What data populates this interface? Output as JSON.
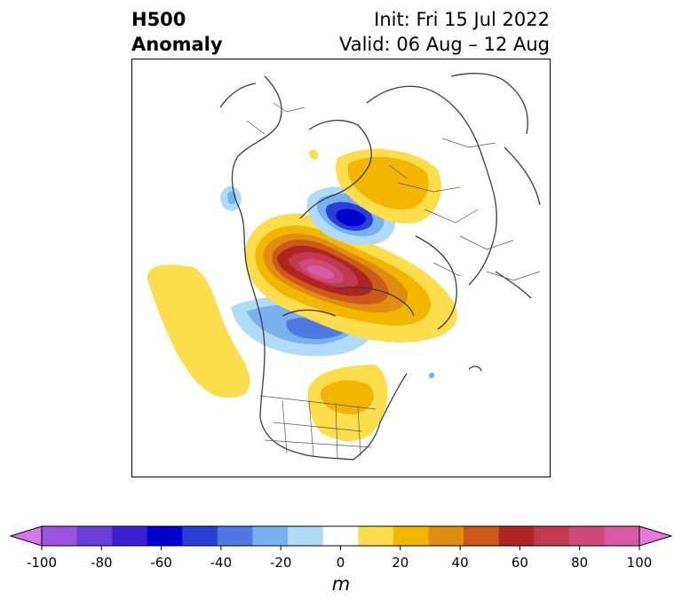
{
  "header": {
    "title_line1": "H500",
    "title_line2": "Anomaly",
    "init": "Init: Fri 15 Jul 2022",
    "valid": "Valid: 06 Aug – 12 Aug"
  },
  "colorbar": {
    "levels": [
      -100,
      -90,
      -80,
      -70,
      -60,
      -50,
      -40,
      -30,
      -20,
      -10,
      10,
      20,
      30,
      40,
      50,
      60,
      70,
      80,
      90,
      100
    ],
    "colors": [
      "#d777e8",
      "#9b53e0",
      "#6b3fd6",
      "#3a20d0",
      "#0000cc",
      "#2a3fd8",
      "#4f78e3",
      "#79b0f0",
      "#b0dbf7",
      "#ffffff",
      "#fcdd4b",
      "#f2b600",
      "#e08c10",
      "#cc5a18",
      "#b02424",
      "#c23a50",
      "#d04a78",
      "#d85aa6",
      "#e87ad6"
    ],
    "tick_labels": [
      "-100",
      "-80",
      "-60",
      "-40",
      "-20",
      "0",
      "20",
      "40",
      "60",
      "80",
      "100"
    ],
    "unit": "m"
  }
}
